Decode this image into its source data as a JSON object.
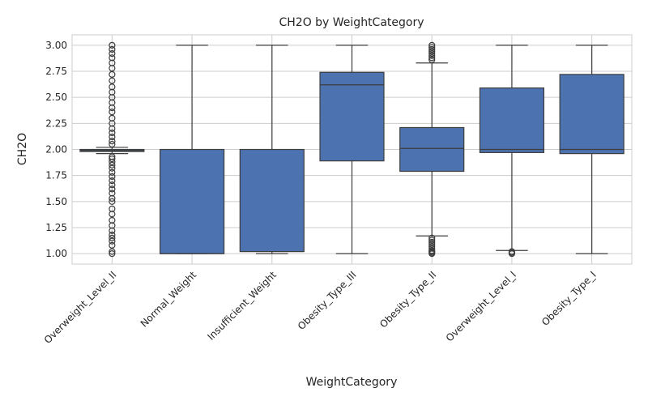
{
  "chart_data": {
    "type": "box",
    "title": "CH2O by WeightCategory",
    "xlabel": "WeightCategory",
    "ylabel": "CH2O",
    "ylim": [
      0.9,
      3.1
    ],
    "yticks": [
      "1.00",
      "1.25",
      "1.50",
      "1.75",
      "2.00",
      "2.25",
      "2.50",
      "2.75",
      "3.00"
    ],
    "grid": true,
    "box_color": "#4c72b0",
    "line_color": "#3d3d3d",
    "categories": [
      "Overweight_Level_II",
      "Normal_Weight",
      "Insufficient_Weight",
      "Obesity_Type_III",
      "Obesity_Type_II",
      "Overweight_Level_I",
      "Obesity_Type_I"
    ],
    "boxes": [
      {
        "category": "Overweight_Level_II",
        "whisker_low": 1.96,
        "q1": 1.98,
        "median": 1.99,
        "q3": 2.0,
        "whisker_high": 2.02,
        "outliers": [
          1.0,
          1.02,
          1.08,
          1.12,
          1.15,
          1.18,
          1.22,
          1.27,
          1.32,
          1.38,
          1.43,
          1.5,
          1.53,
          1.58,
          1.62,
          1.66,
          1.7,
          1.74,
          1.78,
          1.82,
          1.85,
          1.88,
          1.91,
          1.93,
          2.05,
          2.08,
          2.12,
          2.16,
          2.2,
          2.25,
          2.3,
          2.36,
          2.4,
          2.45,
          2.5,
          2.55,
          2.6,
          2.66,
          2.72,
          2.78,
          2.83,
          2.88,
          2.92,
          2.96,
          3.0
        ]
      },
      {
        "category": "Normal_Weight",
        "whisker_low": 1.0,
        "q1": 1.0,
        "median": 1.0,
        "q3": 2.0,
        "whisker_high": 3.0,
        "outliers": []
      },
      {
        "category": "Insufficient_Weight",
        "whisker_low": 1.0,
        "q1": 1.02,
        "median": 1.02,
        "q3": 2.0,
        "whisker_high": 3.0,
        "outliers": []
      },
      {
        "category": "Obesity_Type_III",
        "whisker_low": 1.0,
        "q1": 1.89,
        "median": 2.62,
        "q3": 2.74,
        "whisker_high": 3.0,
        "outliers": []
      },
      {
        "category": "Obesity_Type_II",
        "whisker_low": 1.17,
        "q1": 1.79,
        "median": 2.01,
        "q3": 2.21,
        "whisker_high": 2.83,
        "outliers": [
          1.0,
          1.01,
          1.02,
          1.03,
          1.05,
          1.07,
          1.09,
          1.11,
          1.13,
          1.15,
          2.86,
          2.88,
          2.9,
          2.92,
          2.94,
          2.96,
          2.98,
          3.0
        ]
      },
      {
        "category": "Overweight_Level_I",
        "whisker_low": 1.03,
        "q1": 1.97,
        "median": 2.0,
        "q3": 2.59,
        "whisker_high": 3.0,
        "outliers": [
          1.0,
          1.01,
          1.02
        ]
      },
      {
        "category": "Obesity_Type_I",
        "whisker_low": 1.0,
        "q1": 1.96,
        "median": 2.0,
        "q3": 2.72,
        "whisker_high": 3.0,
        "outliers": []
      }
    ]
  }
}
